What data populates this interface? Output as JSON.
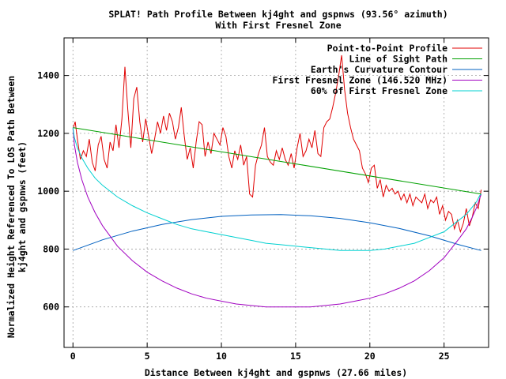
{
  "chart_data": {
    "type": "line",
    "title": "SPLAT! Path Profile Between kj4ght and gspnws (93.56° azimuth)",
    "subtitle": "With First Fresnel Zone",
    "xlabel": "Distance Between kj4ght and gspnws (27.66 miles)",
    "ylabel_line1": "Normalized Height Referenced To LOS Path Between",
    "ylabel_line2": "kj4ght and gspnws (feet)",
    "xlim": [
      -0.6,
      28.0
    ],
    "ylim": [
      460,
      1530
    ],
    "x_ticks": [
      0,
      5,
      10,
      15,
      20,
      25
    ],
    "y_ticks": [
      600,
      800,
      1000,
      1200,
      1400
    ],
    "grid": true,
    "legend_position": "top-right",
    "series": [
      {
        "name": "Point-to-Point Profile",
        "color": "#e00000",
        "x": [
          0,
          0.15,
          0.3,
          0.5,
          0.7,
          0.9,
          1.1,
          1.3,
          1.5,
          1.7,
          1.9,
          2.1,
          2.3,
          2.5,
          2.7,
          2.9,
          3.1,
          3.3,
          3.5,
          3.7,
          3.9,
          4.1,
          4.3,
          4.5,
          4.7,
          4.9,
          5.1,
          5.3,
          5.5,
          5.7,
          5.9,
          6.1,
          6.3,
          6.5,
          6.7,
          6.9,
          7.1,
          7.3,
          7.5,
          7.7,
          7.9,
          8.1,
          8.3,
          8.5,
          8.7,
          8.9,
          9.1,
          9.3,
          9.5,
          9.7,
          9.9,
          10.1,
          10.3,
          10.5,
          10.7,
          10.9,
          11.1,
          11.3,
          11.5,
          11.7,
          11.9,
          12.1,
          12.3,
          12.5,
          12.7,
          12.9,
          13.1,
          13.3,
          13.5,
          13.7,
          13.9,
          14.1,
          14.3,
          14.5,
          14.7,
          14.9,
          15.1,
          15.3,
          15.5,
          15.7,
          15.9,
          16.1,
          16.3,
          16.5,
          16.7,
          16.9,
          17.1,
          17.3,
          17.5,
          17.7,
          17.9,
          18.1,
          18.3,
          18.5,
          18.7,
          18.9,
          19.1,
          19.3,
          19.5,
          19.7,
          19.9,
          20.1,
          20.3,
          20.5,
          20.7,
          20.9,
          21.1,
          21.3,
          21.5,
          21.7,
          21.9,
          22.1,
          22.3,
          22.5,
          22.7,
          22.9,
          23.1,
          23.3,
          23.5,
          23.7,
          23.9,
          24.1,
          24.3,
          24.5,
          24.7,
          24.9,
          25.1,
          25.3,
          25.5,
          25.7,
          25.9,
          26.1,
          26.3,
          26.5,
          26.7,
          26.9,
          27.1,
          27.3,
          27.5
        ],
        "y": [
          1215,
          1240,
          1180,
          1110,
          1140,
          1120,
          1180,
          1100,
          1070,
          1160,
          1190,
          1110,
          1080,
          1170,
          1140,
          1230,
          1150,
          1250,
          1430,
          1280,
          1150,
          1320,
          1360,
          1240,
          1170,
          1250,
          1190,
          1130,
          1180,
          1240,
          1200,
          1260,
          1210,
          1270,
          1240,
          1180,
          1220,
          1290,
          1190,
          1110,
          1150,
          1080,
          1170,
          1240,
          1230,
          1120,
          1170,
          1130,
          1200,
          1180,
          1160,
          1220,
          1190,
          1120,
          1080,
          1140,
          1110,
          1160,
          1090,
          1120,
          990,
          980,
          1090,
          1130,
          1160,
          1220,
          1120,
          1100,
          1090,
          1140,
          1110,
          1150,
          1110,
          1090,
          1130,
          1080,
          1150,
          1200,
          1120,
          1140,
          1180,
          1150,
          1210,
          1130,
          1120,
          1220,
          1240,
          1250,
          1290,
          1340,
          1400,
          1470,
          1350,
          1270,
          1220,
          1180,
          1160,
          1140,
          1080,
          1060,
          1030,
          1080,
          1090,
          1010,
          1040,
          980,
          1020,
          1000,
          1010,
          990,
          1000,
          970,
          990,
          960,
          990,
          950,
          980,
          970,
          960,
          990,
          940,
          970,
          960,
          980,
          920,
          950,
          900,
          930,
          920,
          870,
          900,
          860,
          890,
          940,
          880,
          910,
          960,
          940,
          1005
        ]
      },
      {
        "name": "Line of Sight Path",
        "color": "#00a000",
        "x": [
          0,
          27.5
        ],
        "y": [
          1220,
          990
        ]
      },
      {
        "name": "Earth's Curvature Contour",
        "color": "#0060c0",
        "x": [
          0,
          2,
          4,
          6,
          8,
          10,
          12,
          14,
          16,
          18,
          20,
          22,
          24,
          26,
          27.5
        ],
        "y": [
          795,
          832,
          862,
          885,
          902,
          913,
          918,
          919,
          915,
          906,
          891,
          871,
          846,
          815,
          795
        ]
      },
      {
        "name": "First Fresnel Zone (146.520 MHz)",
        "color": "#a000c0",
        "x": [
          0,
          0.1,
          0.3,
          0.6,
          1,
          1.5,
          2,
          3,
          4,
          5,
          6,
          7,
          8,
          9,
          10,
          11,
          12,
          13,
          14,
          15,
          16,
          17,
          18,
          19,
          20,
          21,
          22,
          23,
          24,
          25,
          26,
          26.5,
          26.9,
          27.2,
          27.4,
          27.5
        ],
        "y": [
          1220,
          1160,
          1100,
          1040,
          980,
          925,
          880,
          810,
          760,
          720,
          690,
          665,
          645,
          630,
          620,
          610,
          605,
          600,
          600,
          600,
          600,
          605,
          610,
          620,
          630,
          645,
          665,
          690,
          725,
          770,
          835,
          870,
          910,
          945,
          975,
          990
        ]
      },
      {
        "name": "60% of First Fresnel Zone",
        "color": "#00d0d0",
        "x": [
          0,
          0.1,
          0.3,
          0.6,
          1,
          1.5,
          2,
          3,
          4,
          5,
          6,
          7,
          8,
          9,
          10,
          11,
          12,
          13,
          14,
          15,
          16,
          17,
          18,
          19,
          20,
          21,
          22,
          23,
          24,
          25,
          26,
          26.5,
          26.9,
          27.2,
          27.4,
          27.5
        ],
        "y": [
          1220,
          1185,
          1150,
          1115,
          1080,
          1045,
          1020,
          980,
          950,
          925,
          905,
          885,
          870,
          860,
          850,
          840,
          830,
          820,
          815,
          810,
          805,
          800,
          795,
          795,
          795,
          800,
          810,
          820,
          840,
          860,
          900,
          920,
          945,
          965,
          985,
          990
        ]
      }
    ]
  }
}
